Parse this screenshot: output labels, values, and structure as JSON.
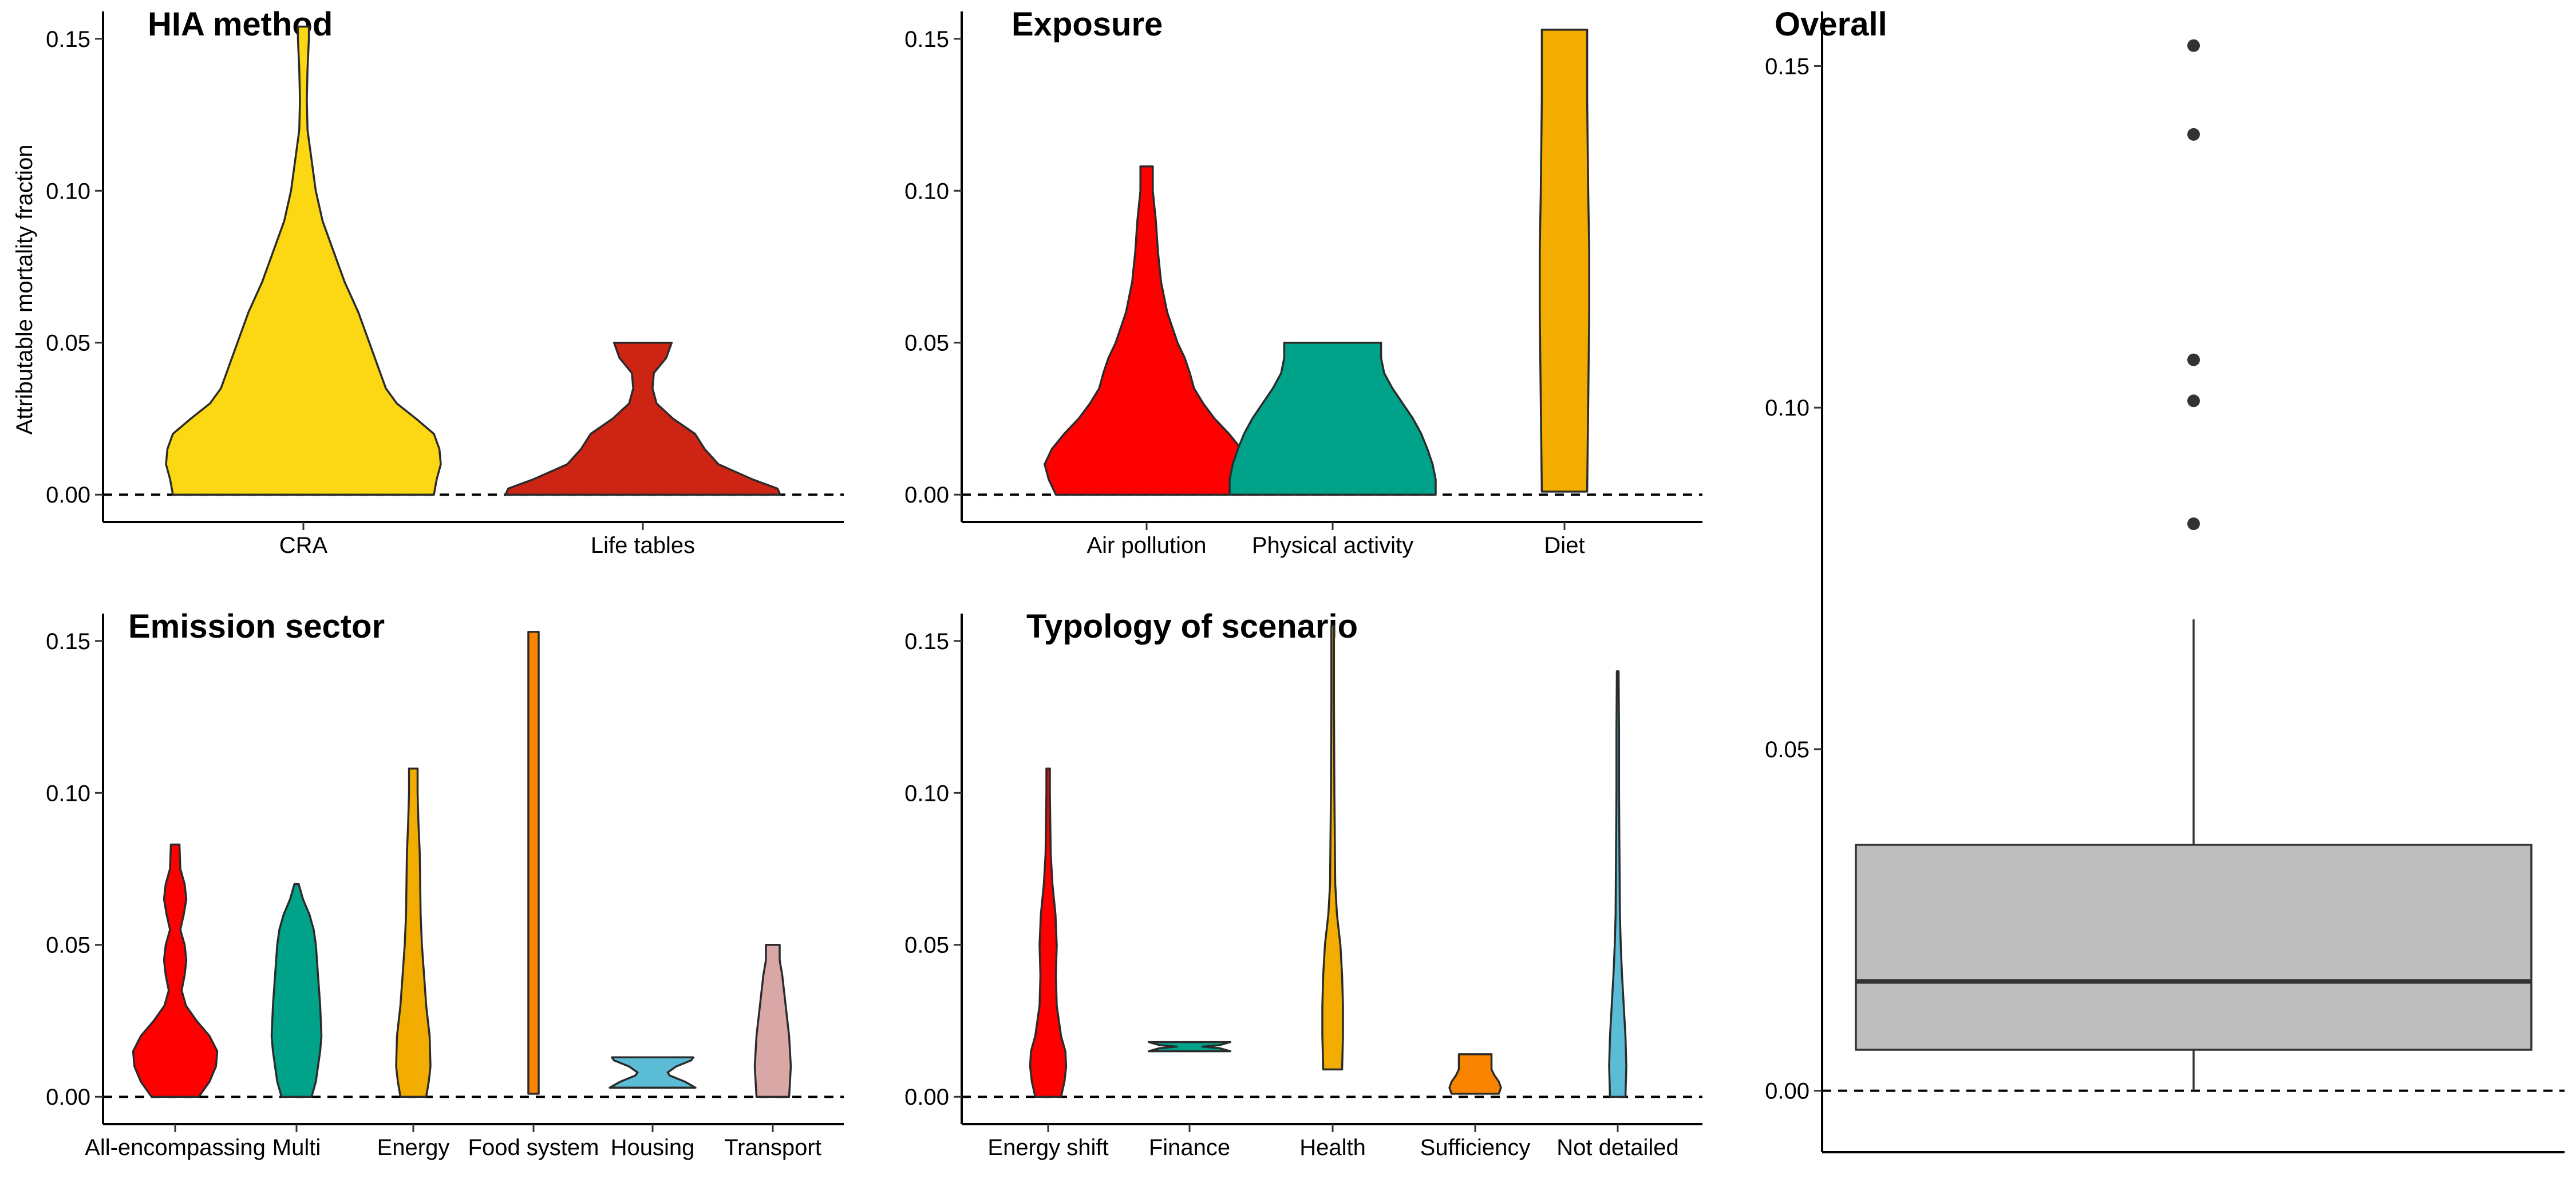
{
  "chart_data": [
    {
      "id": "hia",
      "type": "violin",
      "title": "HIA method",
      "ylabel": "Attributable mortality fraction",
      "ylim": [
        -0.009,
        0.159
      ],
      "yticks": [
        "0.00",
        "0.05",
        "0.10",
        "0.15"
      ],
      "reference_line": 0,
      "categories": [
        {
          "label": "CRA",
          "color": "#FCD714",
          "min": 0.0,
          "max": 0.154,
          "widths": [
            [
              0.0,
              0.95
            ],
            [
              0.005,
              0.97
            ],
            [
              0.01,
              1.0
            ],
            [
              0.015,
              0.99
            ],
            [
              0.02,
              0.95
            ],
            [
              0.025,
              0.82
            ],
            [
              0.03,
              0.68
            ],
            [
              0.035,
              0.6
            ],
            [
              0.04,
              0.56
            ],
            [
              0.05,
              0.48
            ],
            [
              0.06,
              0.4
            ],
            [
              0.07,
              0.3
            ],
            [
              0.08,
              0.22
            ],
            [
              0.09,
              0.14
            ],
            [
              0.1,
              0.09
            ],
            [
              0.11,
              0.06
            ],
            [
              0.12,
              0.03
            ],
            [
              0.13,
              0.025
            ],
            [
              0.14,
              0.03
            ],
            [
              0.15,
              0.04
            ],
            [
              0.154,
              0.04
            ]
          ]
        },
        {
          "label": "Life tables",
          "color": "#CD2414",
          "min": 0.0,
          "max": 0.05,
          "widths": [
            [
              0.0,
              1.0
            ],
            [
              0.002,
              0.98
            ],
            [
              0.005,
              0.8
            ],
            [
              0.01,
              0.55
            ],
            [
              0.015,
              0.45
            ],
            [
              0.02,
              0.38
            ],
            [
              0.025,
              0.22
            ],
            [
              0.03,
              0.1
            ],
            [
              0.035,
              0.07
            ],
            [
              0.04,
              0.08
            ],
            [
              0.045,
              0.17
            ],
            [
              0.05,
              0.21
            ]
          ]
        }
      ]
    },
    {
      "id": "exposure",
      "type": "violin",
      "title": "Exposure",
      "ylim": [
        -0.009,
        0.159
      ],
      "yticks": [
        "0.00",
        "0.05",
        "0.10",
        "0.15"
      ],
      "reference_line": 0,
      "categories": [
        {
          "label": "Air pollution",
          "color": "#FF0000",
          "min": 0.0,
          "max": 0.108,
          "widths": [
            [
              0.0,
              0.88
            ],
            [
              0.005,
              0.95
            ],
            [
              0.01,
              0.99
            ],
            [
              0.015,
              0.92
            ],
            [
              0.02,
              0.8
            ],
            [
              0.025,
              0.66
            ],
            [
              0.03,
              0.55
            ],
            [
              0.035,
              0.46
            ],
            [
              0.04,
              0.42
            ],
            [
              0.045,
              0.37
            ],
            [
              0.05,
              0.3
            ],
            [
              0.06,
              0.2
            ],
            [
              0.07,
              0.14
            ],
            [
              0.08,
              0.11
            ],
            [
              0.09,
              0.09
            ],
            [
              0.1,
              0.06
            ],
            [
              0.108,
              0.06
            ]
          ]
        },
        {
          "label": "Physical activity",
          "color": "#00A28A",
          "min": 0.0,
          "max": 0.05,
          "widths": [
            [
              0.0,
              1.0
            ],
            [
              0.005,
              1.0
            ],
            [
              0.01,
              0.97
            ],
            [
              0.015,
              0.92
            ],
            [
              0.02,
              0.86
            ],
            [
              0.025,
              0.78
            ],
            [
              0.03,
              0.68
            ],
            [
              0.035,
              0.58
            ],
            [
              0.04,
              0.5
            ],
            [
              0.045,
              0.47
            ],
            [
              0.05,
              0.47
            ]
          ]
        },
        {
          "label": "Diet",
          "color": "#F2AD00",
          "min": 0.001,
          "max": 0.153,
          "widths": [
            [
              0.001,
              0.22
            ],
            [
              0.03,
              0.23
            ],
            [
              0.06,
              0.24
            ],
            [
              0.08,
              0.24
            ],
            [
              0.1,
              0.23
            ],
            [
              0.13,
              0.22
            ],
            [
              0.153,
              0.22
            ]
          ]
        }
      ]
    },
    {
      "id": "emission",
      "type": "violin",
      "title": "Emission sector",
      "ylim": [
        -0.009,
        0.159
      ],
      "yticks": [
        "0.00",
        "0.05",
        "0.10",
        "0.15"
      ],
      "reference_line": 0,
      "categories": [
        {
          "label": "All-encompassing",
          "color": "#FF0000",
          "min": 0.0,
          "max": 0.083,
          "widths": [
            [
              0.0,
              0.55
            ],
            [
              0.005,
              0.8
            ],
            [
              0.01,
              0.95
            ],
            [
              0.015,
              0.98
            ],
            [
              0.02,
              0.8
            ],
            [
              0.025,
              0.5
            ],
            [
              0.03,
              0.25
            ],
            [
              0.035,
              0.15
            ],
            [
              0.04,
              0.22
            ],
            [
              0.045,
              0.26
            ],
            [
              0.05,
              0.22
            ],
            [
              0.055,
              0.12
            ],
            [
              0.06,
              0.2
            ],
            [
              0.065,
              0.26
            ],
            [
              0.07,
              0.22
            ],
            [
              0.075,
              0.12
            ],
            [
              0.083,
              0.1
            ]
          ]
        },
        {
          "label": "Multi",
          "color": "#00A28A",
          "min": 0.0,
          "max": 0.07,
          "widths": [
            [
              0.0,
              0.35
            ],
            [
              0.005,
              0.45
            ],
            [
              0.01,
              0.5
            ],
            [
              0.015,
              0.55
            ],
            [
              0.02,
              0.58
            ],
            [
              0.03,
              0.55
            ],
            [
              0.04,
              0.5
            ],
            [
              0.05,
              0.45
            ],
            [
              0.055,
              0.4
            ],
            [
              0.06,
              0.3
            ],
            [
              0.065,
              0.15
            ],
            [
              0.07,
              0.05
            ]
          ]
        },
        {
          "label": "Energy",
          "color": "#F2AD00",
          "min": 0.0,
          "max": 0.108,
          "widths": [
            [
              0.0,
              0.3
            ],
            [
              0.005,
              0.36
            ],
            [
              0.01,
              0.4
            ],
            [
              0.02,
              0.38
            ],
            [
              0.03,
              0.3
            ],
            [
              0.04,
              0.25
            ],
            [
              0.05,
              0.2
            ],
            [
              0.06,
              0.17
            ],
            [
              0.08,
              0.15
            ],
            [
              0.09,
              0.12
            ],
            [
              0.1,
              0.1
            ],
            [
              0.108,
              0.1
            ]
          ]
        },
        {
          "label": "Food system",
          "color": "#F98400",
          "min": 0.001,
          "max": 0.153,
          "widths": [
            [
              0.001,
              0.12
            ],
            [
              0.153,
              0.12
            ]
          ]
        },
        {
          "label": "Housing",
          "color": "#5BBCD6",
          "min": 0.003,
          "max": 0.013,
          "widths": [
            [
              0.003,
              1.0
            ],
            [
              0.005,
              0.75
            ],
            [
              0.007,
              0.4
            ],
            [
              0.008,
              0.35
            ],
            [
              0.01,
              0.55
            ],
            [
              0.012,
              0.9
            ],
            [
              0.013,
              0.95
            ]
          ]
        },
        {
          "label": "Transport",
          "color": "#D8A7A6",
          "min": 0.0,
          "max": 0.05,
          "widths": [
            [
              0.0,
              0.38
            ],
            [
              0.005,
              0.4
            ],
            [
              0.01,
              0.42
            ],
            [
              0.02,
              0.38
            ],
            [
              0.03,
              0.3
            ],
            [
              0.04,
              0.22
            ],
            [
              0.045,
              0.16
            ],
            [
              0.05,
              0.16
            ]
          ]
        }
      ]
    },
    {
      "id": "typology",
      "type": "violin",
      "title": "Typology of scenario",
      "ylim": [
        -0.009,
        0.159
      ],
      "yticks": [
        "0.00",
        "0.05",
        "0.10",
        "0.15"
      ],
      "reference_line": 0,
      "categories": [
        {
          "label": "Energy shift",
          "color": "#FF0000",
          "min": 0.0,
          "max": 0.108,
          "widths": [
            [
              0.0,
              0.3
            ],
            [
              0.005,
              0.38
            ],
            [
              0.01,
              0.42
            ],
            [
              0.015,
              0.4
            ],
            [
              0.02,
              0.3
            ],
            [
              0.03,
              0.2
            ],
            [
              0.04,
              0.18
            ],
            [
              0.05,
              0.2
            ],
            [
              0.06,
              0.17
            ],
            [
              0.07,
              0.1
            ],
            [
              0.08,
              0.06
            ],
            [
              0.1,
              0.04
            ],
            [
              0.108,
              0.04
            ]
          ]
        },
        {
          "label": "Finance",
          "color": "#00A28A",
          "min": 0.015,
          "max": 0.018,
          "widths": [
            [
              0.015,
              0.95
            ],
            [
              0.016,
              0.7
            ],
            [
              0.0165,
              0.3
            ],
            [
              0.017,
              0.7
            ],
            [
              0.018,
              0.95
            ]
          ]
        },
        {
          "label": "Health",
          "color": "#F2AD00",
          "min": 0.009,
          "max": 0.155,
          "widths": [
            [
              0.009,
              0.22
            ],
            [
              0.02,
              0.24
            ],
            [
              0.03,
              0.24
            ],
            [
              0.04,
              0.22
            ],
            [
              0.05,
              0.18
            ],
            [
              0.06,
              0.1
            ],
            [
              0.07,
              0.06
            ],
            [
              0.1,
              0.04
            ],
            [
              0.13,
              0.03
            ],
            [
              0.155,
              0.03
            ]
          ]
        },
        {
          "label": "Sufficiency",
          "color": "#F98400",
          "min": 0.001,
          "max": 0.014,
          "widths": [
            [
              0.001,
              0.55
            ],
            [
              0.003,
              0.6
            ],
            [
              0.005,
              0.55
            ],
            [
              0.007,
              0.45
            ],
            [
              0.009,
              0.38
            ],
            [
              0.012,
              0.38
            ],
            [
              0.014,
              0.38
            ]
          ]
        },
        {
          "label": "Not detailed",
          "color": "#5BBCD6",
          "min": 0.0,
          "max": 0.14,
          "widths": [
            [
              0.0,
              0.18
            ],
            [
              0.01,
              0.2
            ],
            [
              0.02,
              0.18
            ],
            [
              0.03,
              0.14
            ],
            [
              0.04,
              0.1
            ],
            [
              0.05,
              0.07
            ],
            [
              0.06,
              0.05
            ],
            [
              0.08,
              0.04
            ],
            [
              0.1,
              0.03
            ],
            [
              0.12,
              0.03
            ],
            [
              0.14,
              0.02
            ]
          ]
        }
      ]
    },
    {
      "id": "overall",
      "type": "box",
      "title": "Overall",
      "ylim": [
        -0.009,
        0.158
      ],
      "yticks": [
        "0.00",
        "0.05",
        "0.10",
        "0.15"
      ],
      "reference_line": 0,
      "fill": "#BEBEBE",
      "box": {
        "min": 0.0,
        "q1": 0.006,
        "median": 0.016,
        "q3": 0.036,
        "max": 0.069
      },
      "outliers": [
        0.083,
        0.101,
        0.107,
        0.14,
        0.153
      ]
    }
  ]
}
